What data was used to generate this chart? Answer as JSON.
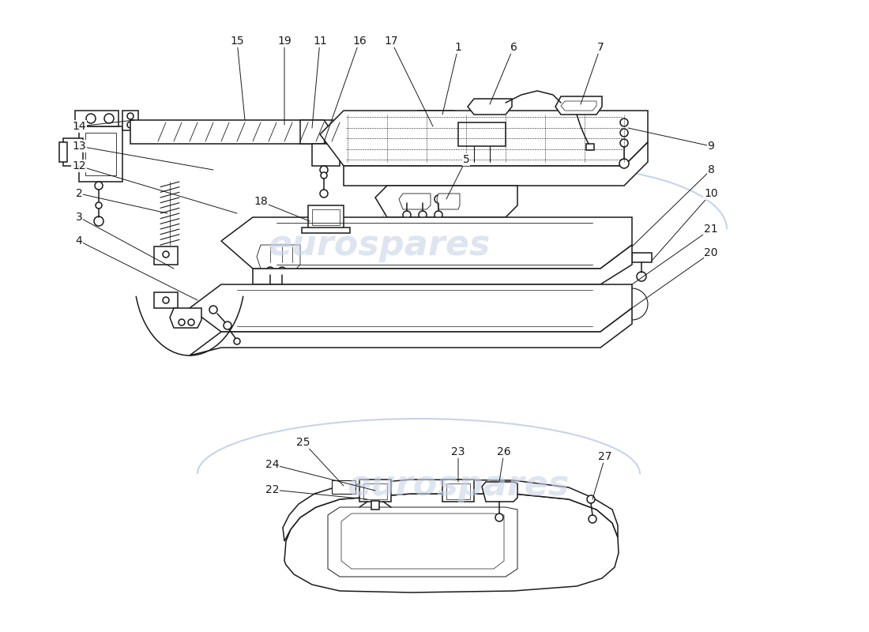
{
  "bg_color": "#ffffff",
  "line_color": "#1a1a1a",
  "watermark_text": "eurospares",
  "watermark_color": "#c8d4e8",
  "label_fontsize": 10,
  "leader_lw": 0.7,
  "part_lw": 1.1
}
